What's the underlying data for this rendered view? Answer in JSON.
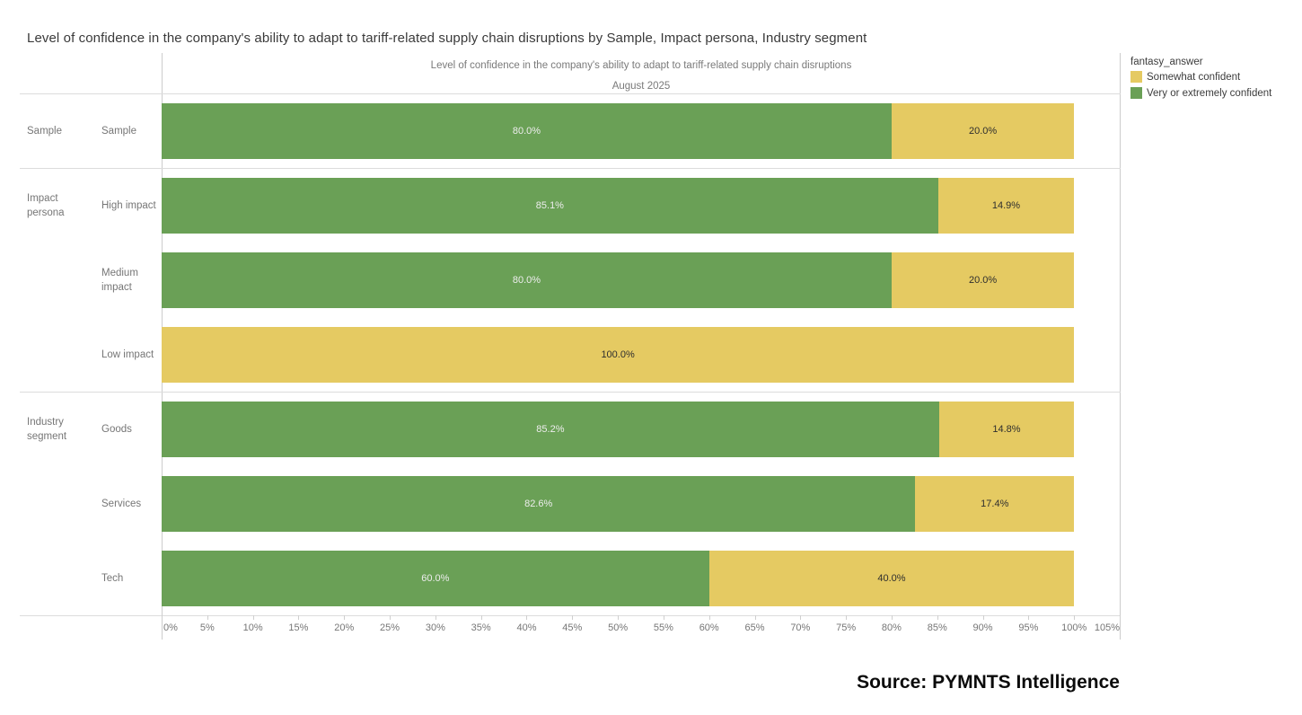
{
  "page": {
    "title": "Level of confidence in the company's ability to adapt to tariff-related supply chain disruptions by Sample, Impact persona, Industry segment",
    "source": "Source: PYMNTS Intelligence"
  },
  "chart": {
    "title": "Level of confidence in the company's ability to adapt to tariff-related supply chain disruptions",
    "subtitle": "August 2025",
    "legend": {
      "title": "fantasy_answer",
      "items": [
        {
          "label": "Somewhat confident",
          "color": "#e5ca62"
        },
        {
          "label": "Very or extremely confident",
          "color": "#6aa056"
        }
      ]
    }
  },
  "chart_data": {
    "type": "bar",
    "orientation": "horizontal",
    "stacked": true,
    "title": "Level of confidence in the company's ability to adapt to tariff-related supply chain disruptions",
    "subtitle": "August 2025",
    "legend_title": "fantasy_answer",
    "legend_position": "top-right",
    "xlim": [
      0,
      105
    ],
    "x_tick_labels": [
      "0%",
      "5%",
      "10%",
      "15%",
      "20%",
      "25%",
      "30%",
      "35%",
      "40%",
      "45%",
      "50%",
      "55%",
      "60%",
      "65%",
      "70%",
      "75%",
      "80%",
      "85%",
      "90%",
      "95%",
      "100%",
      "105%"
    ],
    "categories": [
      "Sample",
      "High impact",
      "Medium impact",
      "Low impact",
      "Goods",
      "Services",
      "Tech"
    ],
    "groups": [
      {
        "label": "Sample",
        "row_indexes": [
          0
        ]
      },
      {
        "label": "Impact persona",
        "row_indexes": [
          1,
          2,
          3
        ]
      },
      {
        "label": "Industry segment",
        "row_indexes": [
          4,
          5,
          6
        ]
      }
    ],
    "series": [
      {
        "name": "Very or extremely confident",
        "color": "#6aa056",
        "text_color": "#ededed",
        "values": [
          80.0,
          85.1,
          80.0,
          0.0,
          85.2,
          82.6,
          60.0
        ]
      },
      {
        "name": "Somewhat confident",
        "color": "#e5ca62",
        "text_color": "#2e2e2e",
        "values": [
          20.0,
          14.9,
          20.0,
          100.0,
          14.8,
          17.4,
          40.0
        ]
      }
    ],
    "data_label_format": "{value:.1f}%"
  }
}
